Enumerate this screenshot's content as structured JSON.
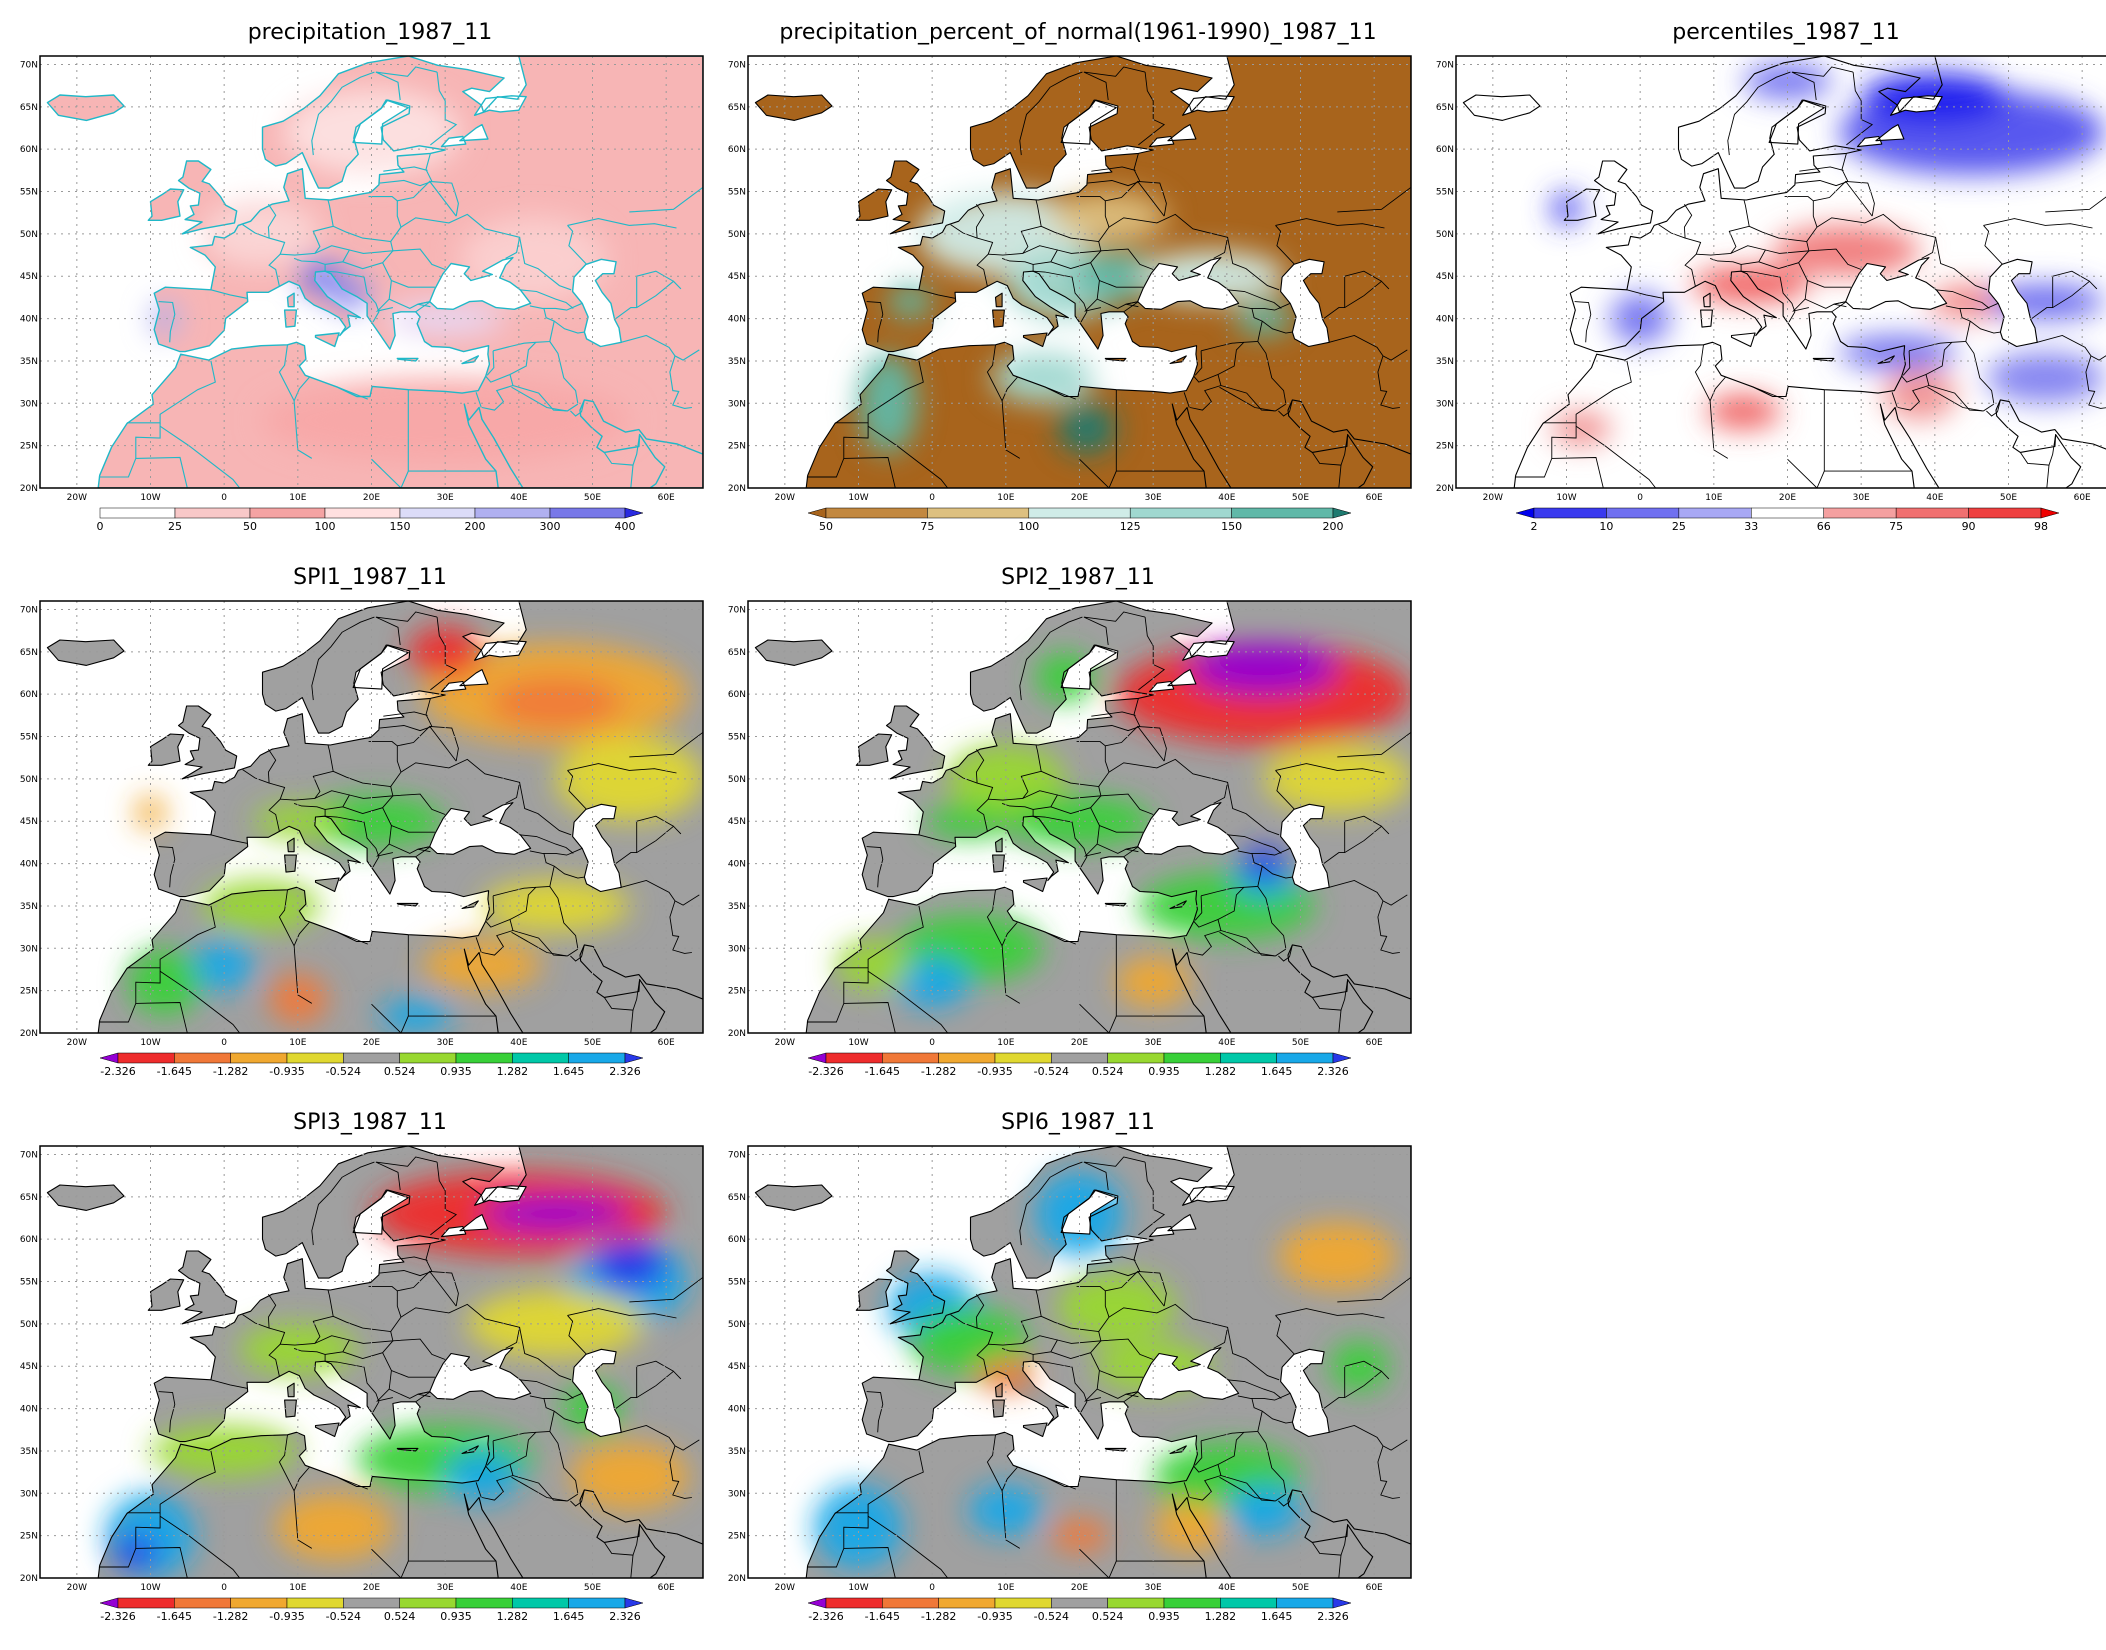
{
  "map_axes": {
    "lon_labels": [
      "20W",
      "10W",
      "0",
      "10E",
      "20E",
      "30E",
      "40E",
      "50E",
      "60E"
    ],
    "lat_labels": [
      "20N",
      "25N",
      "30N",
      "35N",
      "40N",
      "45N",
      "50N",
      "55N",
      "60N",
      "65N",
      "70N"
    ]
  },
  "panels": [
    {
      "title": "precipitation_1987_11",
      "palette": "precip",
      "colorbar": {
        "labels": [
          "0",
          "25",
          "50",
          "100",
          "150",
          "200",
          "300",
          "400"
        ],
        "colors": [
          "#ffffff",
          "#f8c8c8",
          "#f4a3a3",
          "#ffe0e0",
          "#dcdcf8",
          "#b0b0f0",
          "#7878e8",
          "#2a2ae0"
        ],
        "triangles": "right"
      }
    },
    {
      "title": "precipitation_percent_of_normal(1961-1990)_1987_11",
      "palette": "brownteal",
      "colorbar": {
        "labels": [
          "50",
          "75",
          "100",
          "125",
          "150",
          "200"
        ],
        "colors": [
          "#a8641c",
          "#c28840",
          "#ddc080",
          "#d0ece8",
          "#a0d8d0",
          "#60b8a8",
          "#1e7a70"
        ],
        "triangles": "both"
      }
    },
    {
      "title": "percentiles_1987_11",
      "palette": "bluered",
      "colorbar": {
        "labels": [
          "2",
          "10",
          "25",
          "33",
          "66",
          "75",
          "90",
          "98"
        ],
        "colors": [
          "#0000ee",
          "#3a3aee",
          "#7070f0",
          "#a8a8f4",
          "#ffffff",
          "#f4a0a0",
          "#f07070",
          "#ee4040",
          "#ee0000"
        ],
        "triangles": "both"
      }
    },
    {
      "title": "SPI1_1987_11",
      "palette": "spi",
      "colorbar": {
        "labels": [
          "-2.326",
          "-1.645",
          "-1.282",
          "-0.935",
          "-0.524",
          "0.524",
          "0.935",
          "1.282",
          "1.645",
          "2.326"
        ],
        "colors": [
          "#9400d3",
          "#ee2c2c",
          "#f07838",
          "#f0a830",
          "#e0d830",
          "#a0a0a0",
          "#98d830",
          "#38d038",
          "#00c8a8",
          "#18a8e8",
          "#2838e8"
        ],
        "triangles": "both"
      }
    },
    {
      "title": "SPI2_1987_11",
      "palette": "spi",
      "colorbar": {
        "labels": [
          "-2.326",
          "-1.645",
          "-1.282",
          "-0.935",
          "-0.524",
          "0.524",
          "0.935",
          "1.282",
          "1.645",
          "2.326"
        ],
        "colors": [
          "#9400d3",
          "#ee2c2c",
          "#f07838",
          "#f0a830",
          "#e0d830",
          "#a0a0a0",
          "#98d830",
          "#38d038",
          "#00c8a8",
          "#18a8e8",
          "#2838e8"
        ],
        "triangles": "both"
      }
    },
    {
      "title": "SPI3_1987_11",
      "palette": "spi",
      "colorbar": {
        "labels": [
          "-2.326",
          "-1.645",
          "-1.282",
          "-0.935",
          "-0.524",
          "0.524",
          "0.935",
          "1.282",
          "1.645",
          "2.326"
        ],
        "colors": [
          "#9400d3",
          "#ee2c2c",
          "#f07838",
          "#f0a830",
          "#e0d830",
          "#a0a0a0",
          "#98d830",
          "#38d038",
          "#00c8a8",
          "#18a8e8",
          "#2838e8"
        ],
        "triangles": "both"
      }
    },
    {
      "title": "SPI6_1987_11",
      "palette": "spi",
      "colorbar": {
        "labels": [
          "-2.326",
          "-1.645",
          "-1.282",
          "-0.935",
          "-0.524",
          "0.524",
          "0.935",
          "1.282",
          "1.645",
          "2.326"
        ],
        "colors": [
          "#9400d3",
          "#ee2c2c",
          "#f07838",
          "#f0a830",
          "#e0d830",
          "#a0a0a0",
          "#98d830",
          "#38d038",
          "#00c8a8",
          "#18a8e8",
          "#2838e8"
        ],
        "triangles": "both"
      }
    }
  ]
}
